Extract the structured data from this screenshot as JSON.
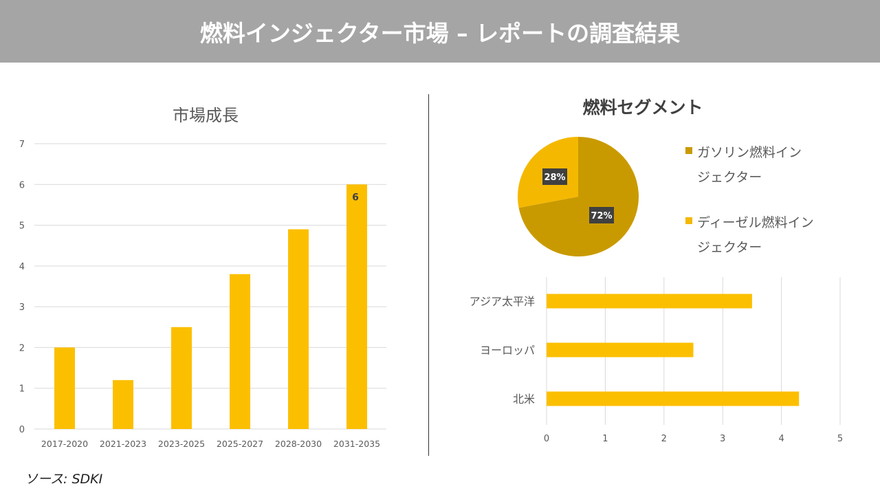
{
  "header": {
    "title": "燃料インジェクター市場 – レポートの調査結果"
  },
  "source": "ソース: SDKI",
  "colors": {
    "bar": "#fcbf00",
    "gasoline": "#c99a00",
    "diesel": "#f5b800",
    "banner": "#a5a5a5"
  },
  "chart_data": [
    {
      "type": "bar",
      "title": "市場成長",
      "categories": [
        "2017-2020",
        "2021-2023",
        "2023-2025",
        "2025-2027",
        "2028-2030",
        "2031-2035"
      ],
      "values": [
        2,
        1.2,
        2.5,
        3.8,
        4.9,
        6
      ],
      "ylim": [
        0,
        7
      ],
      "yticks": [
        "0",
        "1",
        "2",
        "3",
        "4",
        "5",
        "6",
        "7"
      ],
      "data_labels": [
        {
          "index": 5,
          "text": "6"
        }
      ],
      "grid": true
    },
    {
      "type": "pie",
      "title": "燃料セグメント",
      "slices": [
        {
          "label": "ガソリン燃料インジェクター",
          "legend_lines": [
            "ガソリン燃料イン",
            "ジェクター"
          ],
          "value": 72,
          "text": "72%"
        },
        {
          "label": "ディーゼル燃料インジェクター",
          "legend_lines": [
            "ディーゼル燃料イン",
            "ジェクター"
          ],
          "value": 28,
          "text": "28%"
        }
      ],
      "legend": "right"
    },
    {
      "type": "bar",
      "orientation": "horizontal",
      "categories": [
        "アジア太平洋",
        "ヨーロッパ",
        "北米"
      ],
      "values": [
        3.5,
        2.5,
        4.3
      ],
      "xlim": [
        0,
        5
      ],
      "xticks": [
        "0",
        "1",
        "2",
        "3",
        "4",
        "5"
      ],
      "grid": true
    }
  ]
}
